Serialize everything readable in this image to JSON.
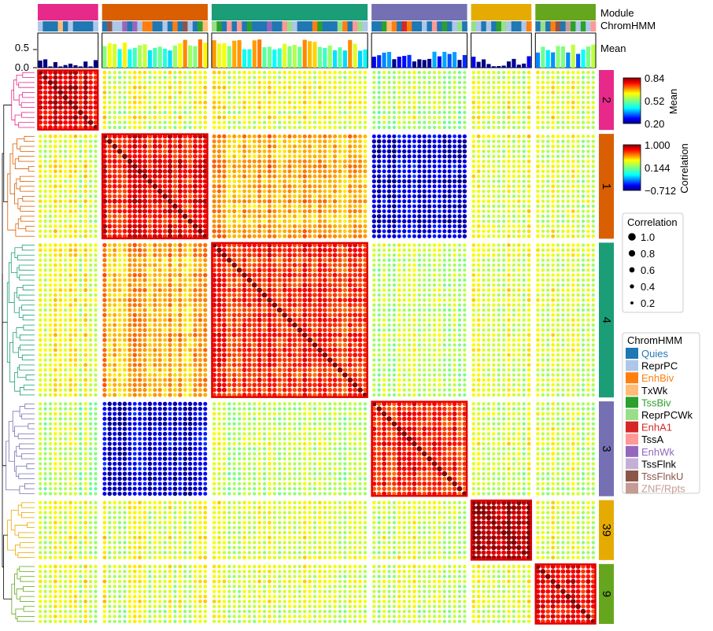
{
  "chart_data": {
    "type": "heatmap",
    "title": "",
    "modules": [
      {
        "name": "2",
        "n": 12,
        "color": "#e7298a"
      },
      {
        "name": "1",
        "n": 21,
        "color": "#d95f02"
      },
      {
        "name": "4",
        "n": 31,
        "color": "#1b9e77"
      },
      {
        "name": "3",
        "n": 19,
        "color": "#7570b3"
      },
      {
        "name": "39",
        "n": 12,
        "color": "#e6ab02"
      },
      {
        "name": "9",
        "n": 12,
        "color": "#66a61e"
      }
    ],
    "track_labels": {
      "module": "Module",
      "chromhmm": "ChromHMM",
      "mean": "Mean"
    },
    "mean_axis": {
      "ticks": [
        "0.5",
        "0.0"
      ],
      "ylim": [
        0,
        0.84
      ]
    },
    "mean_colorbar": {
      "label": "Mean",
      "ticks": [
        "0.84",
        "0.52",
        "0.20"
      ],
      "range": [
        0.2,
        0.84
      ]
    },
    "corr_colorbar": {
      "label": "Correlation",
      "ticks": [
        "1.000",
        "0.144",
        "−0.712"
      ],
      "range": [
        -0.712,
        1.0
      ]
    },
    "size_legend": {
      "title": "Correlation",
      "items": [
        "1.0",
        "0.8",
        "0.6",
        "0.4",
        "0.2"
      ],
      "values": [
        1.0,
        0.8,
        0.6,
        0.4,
        0.2
      ]
    },
    "chromhmm_legend": {
      "title": "ChromHMM",
      "items": [
        {
          "label": "Quies",
          "color": "#1f77b4",
          "text_color": "#1f77b4"
        },
        {
          "label": "ReprPC",
          "color": "#aec7e8",
          "text_color": "#000000"
        },
        {
          "label": "EnhBiv",
          "color": "#ff7f0e",
          "text_color": "#ff7f0e"
        },
        {
          "label": "TxWk",
          "color": "#ffbb78",
          "text_color": "#000000"
        },
        {
          "label": "TssBiv",
          "color": "#2ca02c",
          "text_color": "#2ca02c"
        },
        {
          "label": "ReprPCWk",
          "color": "#98df8a",
          "text_color": "#000000"
        },
        {
          "label": "EnhA1",
          "color": "#d62728",
          "text_color": "#d62728"
        },
        {
          "label": "TssA",
          "color": "#ff9896",
          "text_color": "#000000"
        },
        {
          "label": "EnhWk",
          "color": "#9467bd",
          "text_color": "#9467bd"
        },
        {
          "label": "TssFlnk",
          "color": "#c5b0d5",
          "text_color": "#000000"
        },
        {
          "label": "TssFlnkU",
          "color": "#8c564b",
          "text_color": "#8c564b"
        },
        {
          "label": "ZNF/Rpts",
          "color": "#c49c94",
          "text_color": "#c49c94"
        }
      ]
    },
    "within_module_corr": [
      0.8,
      0.78,
      0.72,
      0.74,
      0.92,
      0.82
    ],
    "between_module_corr": [
      [
        0.8,
        0.3,
        0.32,
        0.22,
        0.28,
        0.3
      ],
      [
        0.3,
        0.78,
        0.5,
        -0.55,
        0.3,
        0.3
      ],
      [
        0.32,
        0.5,
        0.72,
        0.25,
        0.3,
        0.3
      ],
      [
        0.22,
        -0.55,
        0.25,
        0.74,
        0.28,
        0.28
      ],
      [
        0.28,
        0.3,
        0.3,
        0.28,
        0.92,
        0.3
      ],
      [
        0.3,
        0.3,
        0.3,
        0.28,
        0.3,
        0.82
      ]
    ],
    "highlight_diagonal_blocks": true
  }
}
